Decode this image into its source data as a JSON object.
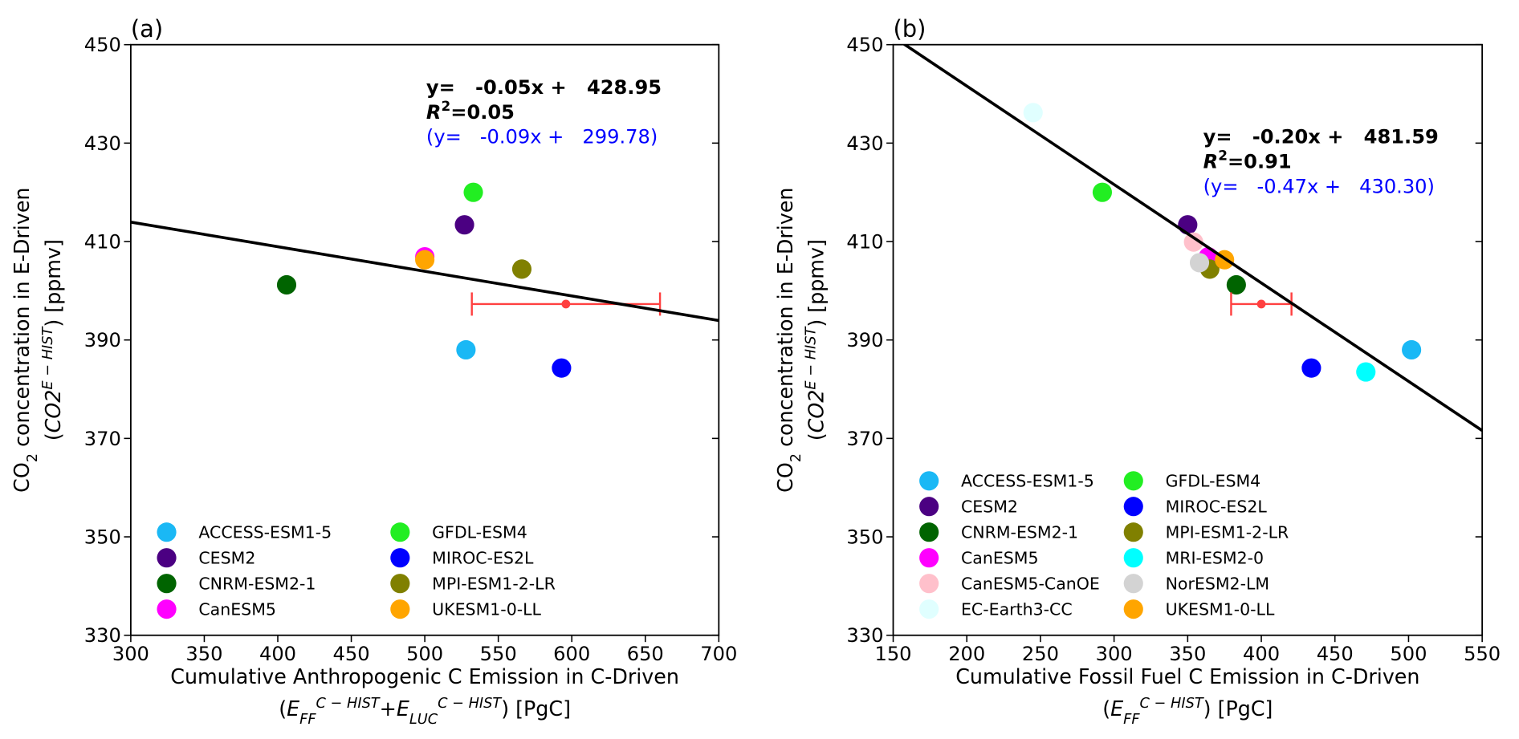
{
  "chart_data": [
    {
      "type": "scatter",
      "panel_label": "(a)",
      "ylabel_lines": [
        [
          {
            "text": "CO"
          },
          {
            "text": "2",
            "sub": true
          },
          {
            "text": " concentration in E-Driven"
          }
        ],
        [
          {
            "text": "("
          },
          {
            "text": "CO2",
            "italic": true
          },
          {
            "text": "E − HIST",
            "sup": true,
            "italic": true
          },
          {
            "text": ") [ppmv]"
          }
        ]
      ],
      "xlabel_lines": [
        [
          {
            "text": "Cumulative Anthropogenic C Emission in C-Driven"
          }
        ],
        [
          {
            "text": "("
          },
          {
            "text": "E",
            "italic": true
          },
          {
            "text": "FF",
            "sub": true,
            "italic": true
          },
          {
            "text": "C − HIST",
            "sup": true,
            "italic": true
          },
          {
            "text": "+"
          },
          {
            "text": "E",
            "italic": true
          },
          {
            "text": "LUC",
            "sub": true,
            "italic": true
          },
          {
            "text": "C − HIST",
            "sup": true,
            "italic": true
          },
          {
            "text": ") [PgC]"
          }
        ]
      ],
      "xlim": [
        300,
        700
      ],
      "xticks": [
        300,
        350,
        400,
        450,
        500,
        550,
        600,
        650,
        700
      ],
      "ylim": [
        330,
        450
      ],
      "yticks": [
        330,
        350,
        370,
        390,
        410,
        430,
        450
      ],
      "fit": {
        "slope": -0.05,
        "intercept": 428.95,
        "color": "#000000"
      },
      "annotations": [
        {
          "color": "#000000",
          "parts": [
            {
              "text": "y=   -0.05x +   428.95"
            }
          ]
        },
        {
          "color": "#000000",
          "parts": [
            {
              "text": "R",
              "italic": true
            },
            {
              "text": "2",
              "sup": true
            },
            {
              "text": "=0.05"
            }
          ]
        },
        {
          "color": "#0000ff",
          "parts": [
            {
              "text": "(y=   -0.09x +   299.78)"
            }
          ]
        }
      ],
      "reference": {
        "x": 596,
        "y": 397.3,
        "xerr": 64,
        "color": "#ff4040"
      },
      "legend": "lower left",
      "series": [
        {
          "name": "ACCESS-ESM1-5",
          "color": "#1ab8f5",
          "x": [
            528
          ],
          "values": [
            388
          ]
        },
        {
          "name": "CESM2",
          "color": "#4b0082",
          "x": [
            527
          ],
          "values": [
            413.4
          ]
        },
        {
          "name": "CNRM-ESM2-1",
          "color": "#006400",
          "x": [
            406
          ],
          "values": [
            401.2
          ]
        },
        {
          "name": "CanESM5",
          "color": "#ff00ff",
          "x": [
            500
          ],
          "values": [
            406.9
          ]
        },
        {
          "name": "GFDL-ESM4",
          "color": "#22ee22",
          "x": [
            533
          ],
          "values": [
            420
          ]
        },
        {
          "name": "MIROC-ES2L",
          "color": "#0000ff",
          "x": [
            593
          ],
          "values": [
            384.3
          ]
        },
        {
          "name": "MPI-ESM1-2-LR",
          "color": "#808000",
          "x": [
            566
          ],
          "values": [
            404.4
          ]
        },
        {
          "name": "UKESM1-0-LL",
          "color": "#ffa500",
          "x": [
            500
          ],
          "values": [
            406.3
          ]
        }
      ]
    },
    {
      "type": "scatter",
      "panel_label": "(b)",
      "ylabel_lines": [
        [
          {
            "text": "CO"
          },
          {
            "text": "2",
            "sub": true
          },
          {
            "text": " concentration in E-Driven"
          }
        ],
        [
          {
            "text": "("
          },
          {
            "text": "CO2",
            "italic": true
          },
          {
            "text": "E − HIST",
            "sup": true,
            "italic": true
          },
          {
            "text": ") [ppmv]"
          }
        ]
      ],
      "xlabel_lines": [
        [
          {
            "text": "Cumulative Fossil Fuel C Emission in C-Driven"
          }
        ],
        [
          {
            "text": "("
          },
          {
            "text": "E",
            "italic": true
          },
          {
            "text": "FF",
            "sub": true,
            "italic": true
          },
          {
            "text": "C − HIST",
            "sup": true,
            "italic": true
          },
          {
            "text": ") [PgC]"
          }
        ]
      ],
      "xlim": [
        150,
        550
      ],
      "xticks": [
        150,
        200,
        250,
        300,
        350,
        400,
        450,
        500,
        550
      ],
      "ylim": [
        330,
        450
      ],
      "yticks": [
        330,
        350,
        370,
        390,
        410,
        430,
        450
      ],
      "fit": {
        "slope": -0.2,
        "intercept": 481.59,
        "color": "#000000"
      },
      "annotations": [
        {
          "color": "#000000",
          "parts": [
            {
              "text": "y=   -0.20x +   481.59"
            }
          ]
        },
        {
          "color": "#000000",
          "parts": [
            {
              "text": "R",
              "italic": true
            },
            {
              "text": "2",
              "sup": true
            },
            {
              "text": "=0.91"
            }
          ]
        },
        {
          "color": "#0000ff",
          "parts": [
            {
              "text": "(y=   -0.47x +   430.30)"
            }
          ]
        }
      ],
      "reference": {
        "x": 400,
        "y": 397.3,
        "xerr": 20.5,
        "color": "#ff4040"
      },
      "legend": "lower left",
      "series": [
        {
          "name": "ACCESS-ESM1-5",
          "color": "#1ab8f5",
          "x": [
            502
          ],
          "values": [
            388
          ]
        },
        {
          "name": "CESM2",
          "color": "#4b0082",
          "x": [
            350
          ],
          "values": [
            413.4
          ]
        },
        {
          "name": "CNRM-ESM2-1",
          "color": "#006400",
          "x": [
            383
          ],
          "values": [
            401.2
          ]
        },
        {
          "name": "CanESM5",
          "color": "#ff00ff",
          "x": [
            364
          ],
          "values": [
            406.9
          ]
        },
        {
          "name": "CanESM5-CanOE",
          "color": "#ffc0cb",
          "x": [
            354
          ],
          "values": [
            409.9
          ]
        },
        {
          "name": "EC-Earth3-CC",
          "color": "#e0ffff",
          "x": [
            245
          ],
          "values": [
            436.2
          ]
        },
        {
          "name": "GFDL-ESM4",
          "color": "#22ee22",
          "x": [
            292
          ],
          "values": [
            420
          ]
        },
        {
          "name": "MIROC-ES2L",
          "color": "#0000ff",
          "x": [
            434
          ],
          "values": [
            384.3
          ]
        },
        {
          "name": "MPI-ESM1-2-LR",
          "color": "#808000",
          "x": [
            365
          ],
          "values": [
            404.4
          ]
        },
        {
          "name": "MRI-ESM2-0",
          "color": "#00ffff",
          "x": [
            471
          ],
          "values": [
            383.5
          ]
        },
        {
          "name": "NorESM2-LM",
          "color": "#d3d3d3",
          "x": [
            358
          ],
          "values": [
            405.7
          ]
        },
        {
          "name": "UKESM1-0-LL",
          "color": "#ffa500",
          "x": [
            375
          ],
          "values": [
            406.3
          ]
        }
      ]
    }
  ]
}
